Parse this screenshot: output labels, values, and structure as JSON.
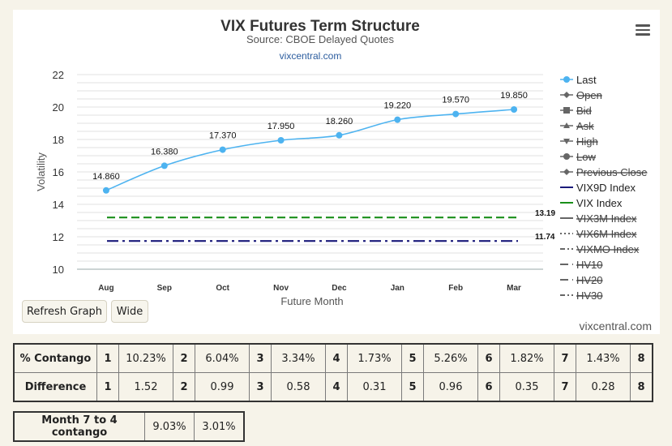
{
  "chart_data": {
    "type": "line",
    "title": "VIX Futures Term Structure",
    "subtitle": "Source: CBOE Delayed Quotes",
    "link_text": "vixcentral.com",
    "xlabel": "Future Month",
    "ylabel": "Volatility",
    "categories": [
      "Aug",
      "Sep",
      "Oct",
      "Nov",
      "Dec",
      "Jan",
      "Feb",
      "Mar"
    ],
    "ylim": [
      10,
      22
    ],
    "yticks": [
      10,
      12,
      14,
      16,
      18,
      20,
      22
    ],
    "grid": true,
    "legend_position": "right",
    "series": [
      {
        "name": "Last",
        "values": [
          14.86,
          16.38,
          17.37,
          17.95,
          18.26,
          19.22,
          19.57,
          19.85
        ],
        "labels": [
          "14.860",
          "16.380",
          "17.370",
          "17.950",
          "18.260",
          "19.220",
          "19.570",
          "19.850"
        ],
        "color": "#4db3f0",
        "style": "line-marker",
        "visible": true
      },
      {
        "name": "VIX Index",
        "value": 13.19,
        "label": "13.19",
        "color": "#1a8f1a",
        "style": "dash",
        "visible": true
      },
      {
        "name": "VIX9D Index",
        "value": 11.74,
        "label": "11.74",
        "color": "#1a1a7a",
        "style": "dashdot",
        "visible": true
      }
    ],
    "legend": [
      {
        "name": "Last",
        "symbol": "circle",
        "color": "#4db3f0",
        "visible": true
      },
      {
        "name": "Open",
        "symbol": "diamond",
        "color": "#999999",
        "visible": false
      },
      {
        "name": "Bid",
        "symbol": "square",
        "color": "#999999",
        "visible": false
      },
      {
        "name": "Ask",
        "symbol": "triangle",
        "color": "#999999",
        "visible": false
      },
      {
        "name": "High",
        "symbol": "triangle-down",
        "color": "#999999",
        "visible": false
      },
      {
        "name": "Low",
        "symbol": "circle",
        "color": "#999999",
        "visible": false
      },
      {
        "name": "Previous Close",
        "symbol": "diamond",
        "color": "#999999",
        "visible": false
      },
      {
        "name": "VIX9D Index",
        "symbol": "solid",
        "color": "#1a1a7a",
        "visible": true
      },
      {
        "name": "VIX Index",
        "symbol": "solid",
        "color": "#1a8f1a",
        "visible": true
      },
      {
        "name": "VIX3M Index",
        "symbol": "solid",
        "color": "#999999",
        "visible": false
      },
      {
        "name": "VIX6M Index",
        "symbol": "dot",
        "color": "#999999",
        "visible": false
      },
      {
        "name": "VIXMO Index",
        "symbol": "dashdot",
        "color": "#999999",
        "visible": false
      },
      {
        "name": "HV10",
        "symbol": "dash",
        "color": "#999999",
        "visible": false
      },
      {
        "name": "HV20",
        "symbol": "dash",
        "color": "#999999",
        "visible": false
      },
      {
        "name": "HV30",
        "symbol": "dashdot",
        "color": "#999999",
        "visible": false
      }
    ]
  },
  "buttons": {
    "refresh": "Refresh Graph",
    "wide": "Wide"
  },
  "credit": "vixcentral.com",
  "contango_table": {
    "rows": [
      {
        "label": "% Contango",
        "cells": [
          "1",
          "10.23%",
          "2",
          "6.04%",
          "3",
          "3.34%",
          "4",
          "1.73%",
          "5",
          "5.26%",
          "6",
          "1.82%",
          "7",
          "1.43%",
          "8"
        ]
      },
      {
        "label": "Difference",
        "cells": [
          "1",
          "1.52",
          "2",
          "0.99",
          "3",
          "0.58",
          "4",
          "0.31",
          "5",
          "0.96",
          "6",
          "0.35",
          "7",
          "0.28",
          "8"
        ]
      }
    ]
  },
  "month_table": {
    "label": "Month 7 to 4 contango",
    "values": [
      "9.03%",
      "3.01%"
    ]
  }
}
